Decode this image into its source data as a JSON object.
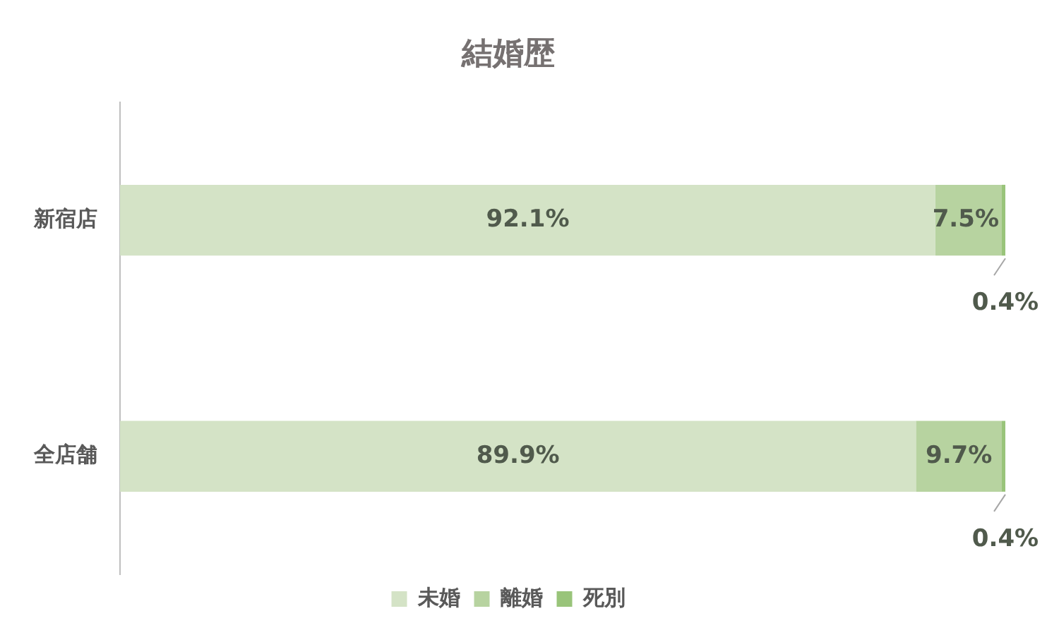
{
  "chart_data": {
    "type": "bar",
    "orientation": "horizontal",
    "stacked": true,
    "xlim": [
      0,
      100
    ],
    "title": "結婚歴",
    "categories": [
      "新宿店",
      "全店舗"
    ],
    "series": [
      {
        "name": "未婚",
        "color": "#d4e3c6",
        "values": [
          92.1,
          89.9
        ],
        "value_labels": [
          "92.1%",
          "89.9%"
        ]
      },
      {
        "name": "離婚",
        "color": "#b7d3a0",
        "values": [
          7.5,
          9.7
        ],
        "value_labels": [
          "7.5%",
          "9.7%"
        ]
      },
      {
        "name": "死別",
        "color": "#99c47a",
        "values": [
          0.4,
          0.4
        ],
        "value_labels": [
          "0.4%",
          "0.4%"
        ]
      }
    ],
    "grid": false,
    "legend": "bottom",
    "tick_labels": "y"
  }
}
